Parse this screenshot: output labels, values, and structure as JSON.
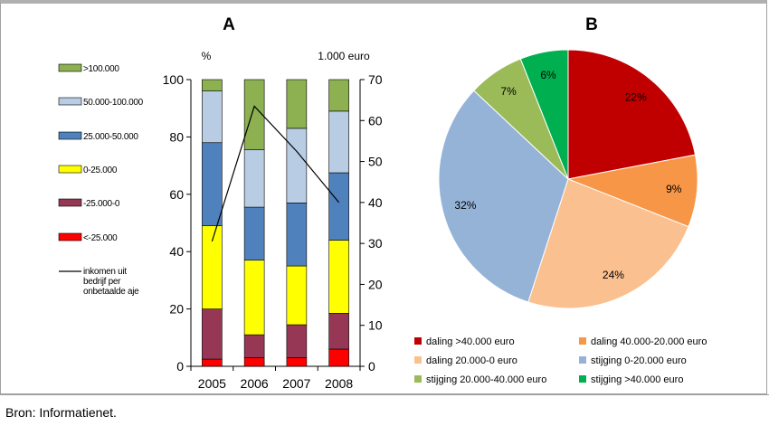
{
  "source": "Bron: Informatienet.",
  "colors": {
    "gt100": "#8db051",
    "c50_100": "#b8cce4",
    "c25_50": "#4f81bd",
    "c0_25": "#ffff00",
    "cm25_0": "#953755",
    "lt_m25": "#ff0000",
    "pie_daling_gt40": "#c00000",
    "pie_daling_40_20": "#f79646",
    "pie_daling_20_0": "#fac090",
    "pie_stijging_0_20": "#95b3d7",
    "pie_stijging_20_40": "#9bbb59",
    "pie_stijging_gt40": "#00b050"
  },
  "chart_data": [
    {
      "type": "bar",
      "title": "A",
      "ylabel_left": "%",
      "ylabel_right": "1.000 euro",
      "categories": [
        "2005",
        "2006",
        "2007",
        "2008"
      ],
      "ylim": [
        0,
        100
      ],
      "yticks": [
        "0",
        "20",
        "40",
        "60",
        "80",
        "100"
      ],
      "ylim_right": [
        0,
        70
      ],
      "yticks_right": [
        "0",
        "10",
        "20",
        "30",
        "40",
        "50",
        "60",
        "70"
      ],
      "series": [
        {
          "name": "<-25.000",
          "color_key": "lt_m25",
          "values": [
            2.5,
            3,
            3,
            6
          ]
        },
        {
          "name": "-25.000-0",
          "color_key": "cm25_0",
          "values": [
            17.5,
            8,
            11.5,
            12.5
          ]
        },
        {
          "name": "0-25.000",
          "color_key": "c0_25",
          "values": [
            29,
            26,
            20.5,
            25.5
          ]
        },
        {
          "name": "25.000-50.000",
          "color_key": "c25_50",
          "values": [
            29,
            18.5,
            22,
            23.5
          ]
        },
        {
          "name": "50.000-100.000",
          "color_key": "c50_100",
          "values": [
            18,
            20,
            26,
            21.5
          ]
        },
        {
          "name": ">100.000",
          "color_key": "gt100",
          "values": [
            4,
            24.5,
            17,
            11
          ]
        }
      ],
      "line": {
        "name": "inkomen uit bedrijf per onbetaalde aje",
        "values": [
          30.5,
          63.5,
          52.5,
          40
        ]
      }
    },
    {
      "type": "pie",
      "title": "B",
      "slices": [
        {
          "name": "daling >40.000 euro",
          "value": 22,
          "label": "22%",
          "color_key": "pie_daling_gt40"
        },
        {
          "name": "daling 40.000-20.000 euro",
          "value": 9,
          "label": "9%",
          "color_key": "pie_daling_40_20"
        },
        {
          "name": "daling 20.000-0 euro",
          "value": 24,
          "label": "24%",
          "color_key": "pie_daling_20_0"
        },
        {
          "name": "stijging 0-20.000 euro",
          "value": 32,
          "label": "32%",
          "color_key": "pie_stijging_0_20"
        },
        {
          "name": "stijging 20.000-40.000 euro",
          "value": 7,
          "label": "7%",
          "color_key": "pie_stijging_20_40"
        },
        {
          "name": "stijging >40.000 euro",
          "value": 6,
          "label": "6%",
          "color_key": "pie_stijging_gt40"
        }
      ]
    }
  ]
}
